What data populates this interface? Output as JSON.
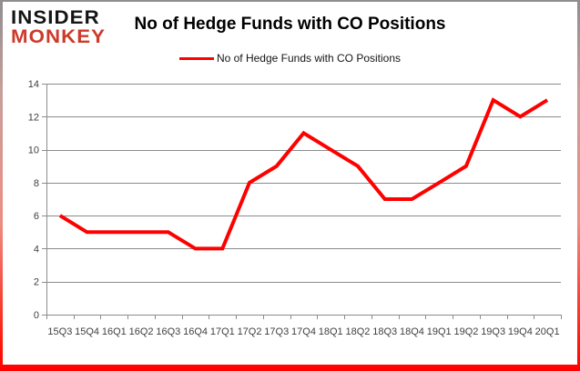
{
  "logo": {
    "line1": "INSIDER",
    "line2": "MONKEY",
    "line1_color": "#151515",
    "line2_color": "#cd3a2a"
  },
  "title": "No of Hedge Funds with CO Positions",
  "legend": {
    "label": "No of Hedge Funds with CO Positions",
    "color": "#fe0000"
  },
  "chart_data": {
    "type": "line",
    "title": "No of Hedge Funds with CO Positions",
    "categories": [
      "15Q3",
      "15Q4",
      "16Q1",
      "16Q2",
      "16Q3",
      "16Q4",
      "17Q1",
      "17Q2",
      "17Q3",
      "17Q4",
      "18Q1",
      "18Q2",
      "18Q3",
      "18Q4",
      "19Q1",
      "19Q2",
      "19Q3",
      "19Q4",
      "20Q1"
    ],
    "values": [
      6,
      5,
      5,
      5,
      5,
      4,
      4,
      8,
      9,
      11,
      10,
      9,
      7,
      7,
      8,
      9,
      13,
      12,
      13
    ],
    "xlabel": "",
    "ylabel": "",
    "ylim": [
      0,
      14
    ],
    "ytick_step": 2,
    "grid": true,
    "legend_position": "top",
    "line_color": "#fe0000",
    "line_width": 4,
    "gridline_color": "#8c8c8c",
    "label_color": "#3f3f3f"
  }
}
